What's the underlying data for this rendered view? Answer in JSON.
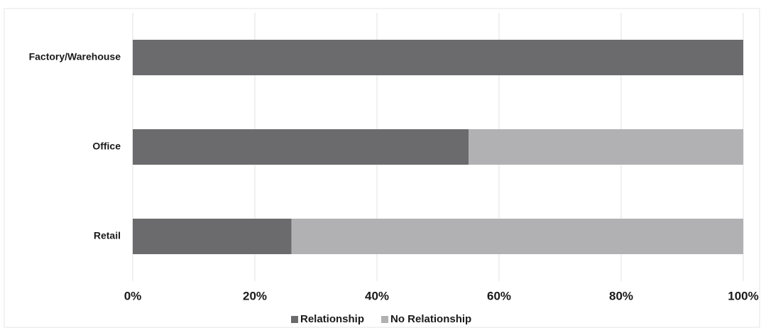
{
  "chart_data": {
    "type": "stacked-bar-horizontal",
    "categories": [
      "Factory/Warehouse",
      "Office",
      "Retail"
    ],
    "series": [
      {
        "name": "Relationship",
        "color": "#6b6b6d",
        "values": [
          100,
          55,
          26
        ]
      },
      {
        "name": "No Relationship",
        "color": "#b1b1b3",
        "values": [
          0,
          45,
          74
        ]
      }
    ],
    "xlim": [
      0,
      100
    ],
    "xticks": [
      {
        "value": 0,
        "label": "0%"
      },
      {
        "value": 20,
        "label": "20%"
      },
      {
        "value": 40,
        "label": "40%"
      },
      {
        "value": 60,
        "label": "60%"
      },
      {
        "value": 80,
        "label": "80%"
      },
      {
        "value": 100,
        "label": "100%"
      }
    ],
    "grid": true,
    "legend": "bottom"
  }
}
